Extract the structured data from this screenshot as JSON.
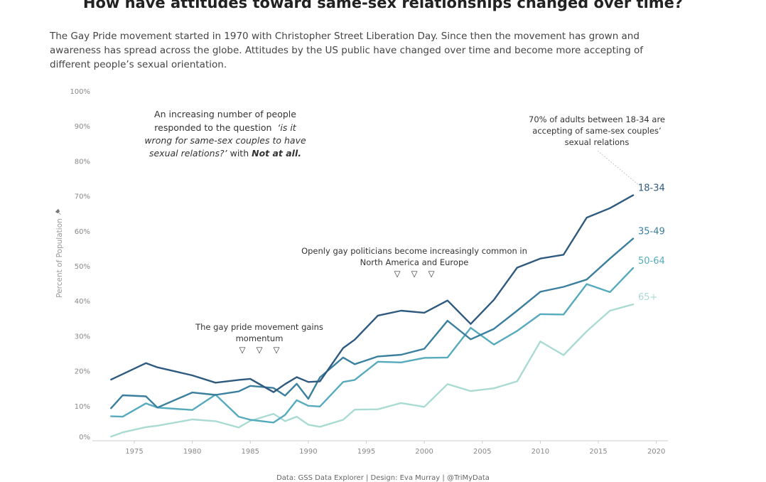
{
  "title": "How have attitudes toward same-sex relationships changed over time?",
  "description": [
    "The Gay Pride movement started in 1970 with Christopher Street Liberation Day. Since then the movement has grown and",
    "awareness has spread across the globe. Attitudes by the US public have changed over time and become more accepting of",
    "different people’s sexual orientation."
  ],
  "footer": "Data: GSS Data Explorer  |  Design: Eva Murray  |  @TriMyData",
  "colors": {
    "18-34": "#2e5a7f",
    "35-49": "#3b7f9e",
    "50-64": "#56aabd",
    "65+": "#a9dbd3",
    "axis": "#cccccc"
  },
  "annotations": {
    "question": {
      "line1": "An increasing number of people",
      "line2": "responded to the question",
      "q1": "‘is it",
      "q2": "wrong for same-sex couples to have",
      "q3": "sexual relations?’",
      "with": " with ",
      "answer": "Not at all."
    },
    "adults": [
      "70% of adults between 18-34 are",
      "accepting of same-sex couples’",
      "sexual relations"
    ],
    "politicians": [
      "Openly gay politicians become increasingly common in",
      "North America and Europe"
    ],
    "pride": [
      "The gay pride movement gains",
      "momentum"
    ],
    "marker": "▽"
  },
  "chart_data": {
    "type": "line",
    "title": "How have attitudes toward same-sex relationships changed over time?",
    "xlabel": "",
    "ylabel": "Percent of Population",
    "xlim": [
      1972,
      2021
    ],
    "ylim": [
      0,
      100
    ],
    "x_ticks": [
      "1975",
      "1980",
      "1985",
      "1990",
      "1995",
      "2000",
      "2005",
      "2010",
      "2015",
      "2020"
    ],
    "y_ticks": [
      "0%",
      "10%",
      "20%",
      "30%",
      "40%",
      "50%",
      "60%",
      "70%",
      "80%",
      "90%",
      "100%"
    ],
    "series": [
      {
        "name": "18-34",
        "x": [
          1973,
          1976,
          1977,
          1980,
          1982,
          1984,
          1985,
          1987,
          1988,
          1989,
          1990,
          1991,
          1993,
          1994,
          1996,
          1998,
          2000,
          2002,
          2004,
          2006,
          2008,
          2010,
          2012,
          2014,
          2016,
          2018
        ],
        "values": [
          17.5,
          22.2,
          21.0,
          18.7,
          16.6,
          17.4,
          17.7,
          13.9,
          16.2,
          18.2,
          16.8,
          17.0,
          26.5,
          28.9,
          35.8,
          37.2,
          36.6,
          40.1,
          33.4,
          40.3,
          49.5,
          52.1,
          53.2,
          63.8,
          66.5,
          70.2
        ]
      },
      {
        "name": "35-49",
        "x": [
          1973,
          1974,
          1976,
          1977,
          1980,
          1982,
          1984,
          1985,
          1987,
          1988,
          1989,
          1990,
          1991,
          1993,
          1994,
          1996,
          1998,
          2000,
          2002,
          2004,
          2006,
          2008,
          2010,
          2012,
          2014,
          2016,
          2018
        ],
        "values": [
          9.3,
          13.0,
          12.7,
          9.5,
          13.8,
          13.1,
          14.1,
          15.7,
          15.1,
          12.9,
          16.3,
          12.0,
          18.1,
          23.8,
          21.9,
          24.1,
          24.6,
          26.3,
          34.3,
          29.0,
          32.0,
          37.2,
          42.6,
          44.0,
          46.1,
          52.1,
          57.8
        ]
      },
      {
        "name": "50-64",
        "x": [
          1973,
          1974,
          1976,
          1977,
          1980,
          1982,
          1984,
          1985,
          1987,
          1988,
          1989,
          1990,
          1991,
          1993,
          1994,
          1996,
          1998,
          2000,
          2002,
          2004,
          2006,
          2008,
          2010,
          2012,
          2014,
          2016,
          2018
        ],
        "values": [
          7.0,
          6.9,
          10.7,
          9.5,
          8.8,
          13.2,
          6.9,
          6.0,
          5.2,
          7.4,
          11.6,
          10.0,
          9.8,
          16.8,
          17.4,
          22.6,
          22.4,
          23.7,
          23.8,
          32.3,
          27.5,
          31.4,
          36.2,
          36.1,
          44.8,
          42.5,
          49.4
        ]
      },
      {
        "name": "65+",
        "x": [
          1973,
          1974,
          1976,
          1977,
          1980,
          1982,
          1984,
          1985,
          1987,
          1988,
          1989,
          1990,
          1991,
          1993,
          1994,
          1996,
          1998,
          2000,
          2002,
          2004,
          2006,
          2008,
          2010,
          2012,
          2014,
          2016,
          2018
        ],
        "values": [
          1.2,
          2.4,
          3.9,
          4.3,
          6.1,
          5.6,
          3.8,
          5.7,
          7.7,
          5.6,
          6.9,
          4.6,
          4.0,
          6.0,
          8.9,
          9.0,
          10.8,
          9.7,
          16.2,
          14.2,
          15.0,
          17.0,
          28.4,
          24.5,
          31.3,
          37.2,
          39.0
        ]
      }
    ]
  }
}
